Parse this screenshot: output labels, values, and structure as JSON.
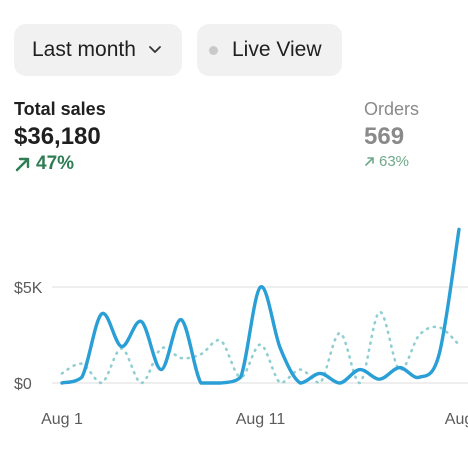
{
  "filters": {
    "range_label": "Last month",
    "live_label": "Live View"
  },
  "metrics": {
    "sales": {
      "label": "Total sales",
      "value": "$36,180",
      "change": "47%",
      "trend": "up"
    },
    "orders": {
      "label": "Orders",
      "value": "569",
      "change": "63%",
      "trend": "up"
    }
  },
  "colors": {
    "primary_line": "#2a9fd6",
    "comparison_line": "#8fcfd1",
    "positive": "#2e7d53"
  },
  "chart_data": {
    "type": "line",
    "y_ticks": [
      "$5K",
      "$0"
    ],
    "x_ticks": [
      "Aug 1",
      "Aug 11",
      "Aug"
    ],
    "ylim": [
      0,
      10000
    ],
    "series": [
      {
        "style": "solid",
        "x": [
          0,
          1,
          2,
          3,
          4,
          5,
          6,
          7,
          8,
          9,
          10,
          11,
          12,
          13,
          14,
          15,
          16,
          17,
          18,
          19,
          20
        ],
        "values": [
          0,
          300,
          3600,
          1900,
          3200,
          700,
          3300,
          0,
          0,
          300,
          5000,
          1800,
          0,
          500,
          0,
          700,
          200,
          800,
          300,
          1500,
          8000
        ]
      },
      {
        "style": "dotted",
        "x": [
          0,
          1,
          2,
          3,
          4,
          5,
          6,
          7,
          8,
          9,
          10,
          11,
          12,
          13,
          14,
          15,
          16,
          17,
          18,
          19,
          20
        ],
        "values": [
          500,
          1000,
          0,
          1800,
          0,
          1800,
          1300,
          1500,
          2200,
          300,
          2000,
          0,
          700,
          0,
          2600,
          0,
          3700,
          700,
          2500,
          2900,
          2000
        ]
      }
    ]
  }
}
